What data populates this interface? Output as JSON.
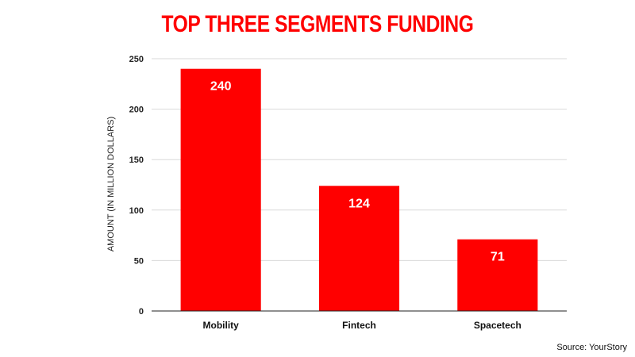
{
  "chart_data": {
    "type": "bar",
    "title": "TOP THREE SEGMENTS FUNDING",
    "xlabel": "",
    "ylabel": "AMOUNT (IN MILLION DOLLARS)",
    "categories": [
      "Mobility",
      "Fintech",
      "Spacetech"
    ],
    "values": [
      240,
      124,
      71
    ],
    "data_labels": [
      "240",
      "124",
      "71"
    ],
    "ylim": [
      0,
      250
    ],
    "yticks": [
      0,
      50,
      100,
      150,
      200,
      250
    ],
    "ytick_labels": [
      "0",
      "50",
      "100",
      "150",
      "200",
      "250"
    ],
    "grid": true,
    "legend": "none"
  },
  "source": "Source: YourStory",
  "colors": {
    "bar": "#ff0000",
    "title": "#ff0000",
    "gridline": "#d9d9d9",
    "axis": "#222222"
  }
}
